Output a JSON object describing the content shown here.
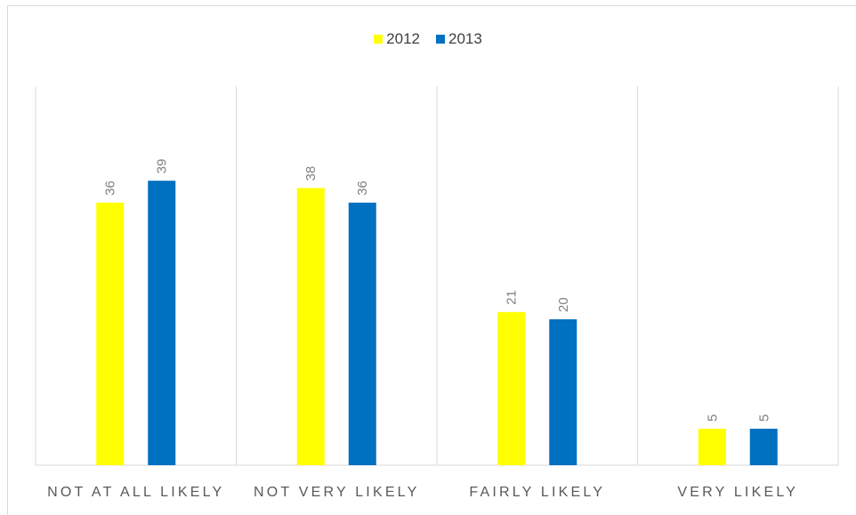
{
  "chart_data": {
    "type": "bar",
    "categories": [
      "NOT AT ALL LIKELY",
      "NOT VERY LIKELY",
      "FAIRLY LIKELY",
      "VERY LIKELY"
    ],
    "series": [
      {
        "name": "2012",
        "color": "#ffff00",
        "values": [
          36,
          38,
          21,
          5
        ]
      },
      {
        "name": "2013",
        "color": "#0070c0",
        "values": [
          39,
          36,
          20,
          5
        ]
      }
    ],
    "title": "",
    "xlabel": "",
    "ylabel": "",
    "ylim": [
      0,
      42
    ],
    "grid": "vertical category separators",
    "legend_position": "top",
    "data_labels": "rotated above bars"
  },
  "legend": {
    "items": [
      {
        "label": "2012",
        "color": "#ffff00"
      },
      {
        "label": "2013",
        "color": "#0070c0"
      }
    ]
  }
}
